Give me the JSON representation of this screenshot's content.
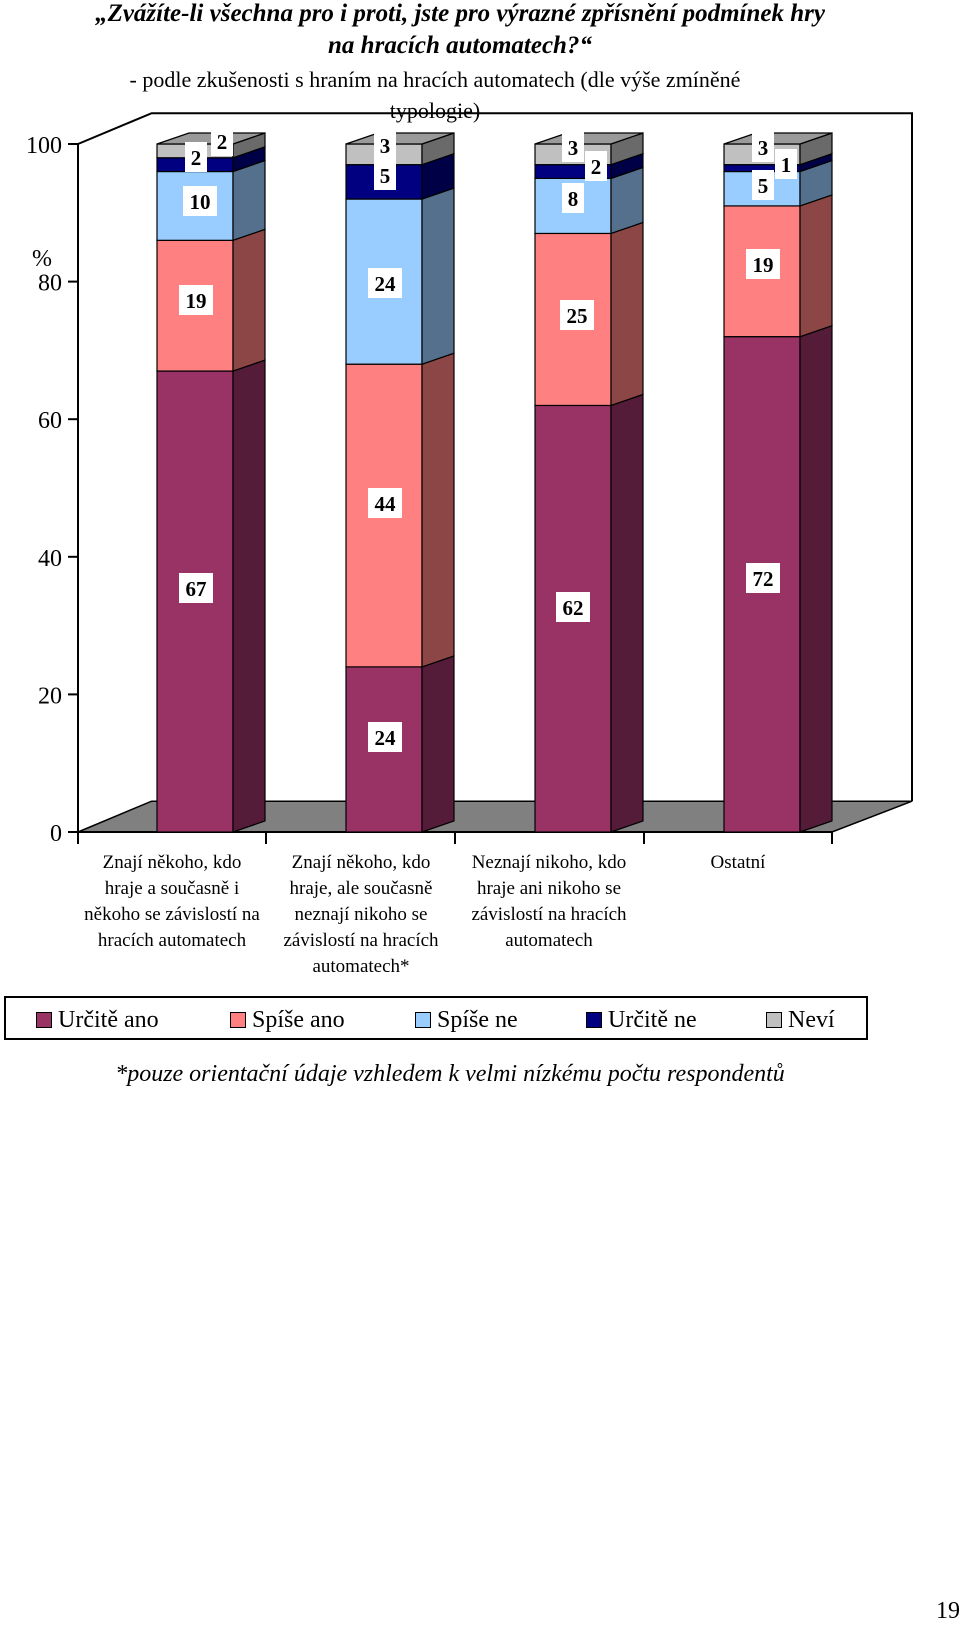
{
  "page_number": "19",
  "footnote": "*pouze orientační údaje vzhledem k velmi nízkému počtu respondentů",
  "chart_data": {
    "type": "bar",
    "stacked": true,
    "title_lines": [
      "„Zvážíte-li všechna pro i proti, jste pro výrazné zpřísnění podmínek hry",
      "na hracích automatech?“"
    ],
    "subtitle_lines": [
      "- podle zkušenosti s hraním na hracích automatech (dle výše zmíněné",
      "typologie)"
    ],
    "ylabel": "%",
    "ylim": [
      0,
      100
    ],
    "yticks": [
      0,
      20,
      40,
      60,
      80,
      100
    ],
    "categories": [
      [
        "Znají někoho, kdo",
        "hraje a současně i",
        "někoho se závislostí na",
        "hracích automatech"
      ],
      [
        "Znají někoho, kdo",
        "hraje, ale současně",
        "neznají nikoho se",
        "závislostí na hracích",
        "automatech*"
      ],
      [
        "Neznají nikoho, kdo",
        "hraje ani nikoho se",
        "závislostí na hracích",
        "automatech"
      ],
      [
        "Ostatní"
      ]
    ],
    "series": [
      {
        "name": "Určitě ano",
        "color": "#993366",
        "values": [
          67,
          24,
          62,
          72
        ]
      },
      {
        "name": "Spíše ano",
        "color": "#FF8080",
        "values": [
          19,
          44,
          25,
          19
        ]
      },
      {
        "name": "Spíše ne",
        "color": "#99CCFF",
        "values": [
          10,
          24,
          8,
          5
        ]
      },
      {
        "name": "Určitě ne",
        "color": "#000080",
        "values": [
          2,
          5,
          2,
          1
        ]
      },
      {
        "name": "Neví",
        "color": "#C0C0C0",
        "values": [
          2,
          3,
          3,
          3
        ]
      }
    ],
    "legend_position": "bottom"
  }
}
